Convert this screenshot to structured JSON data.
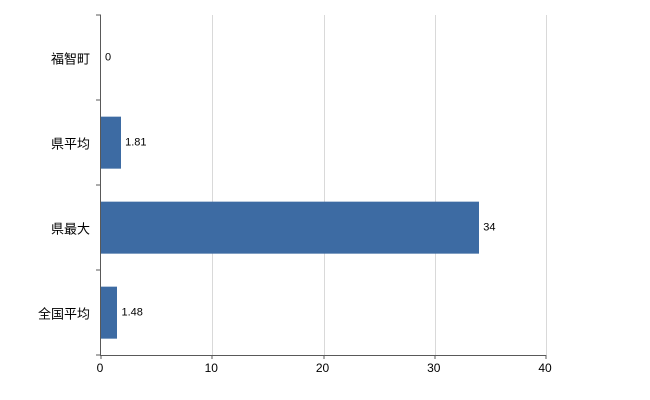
{
  "chart_data": {
    "type": "bar",
    "orientation": "horizontal",
    "title": "",
    "xlabel": "",
    "ylabel": "",
    "categories": [
      "福智町",
      "県平均",
      "県最大",
      "全国平均"
    ],
    "values": [
      0,
      1.81,
      34,
      1.48
    ],
    "value_labels": [
      "0",
      "1.81",
      "34",
      "1.48"
    ],
    "xlim": [
      0,
      40
    ],
    "xticks": [
      0,
      10,
      20,
      30,
      40
    ],
    "xtick_labels": [
      "0",
      "10",
      "20",
      "30",
      "40"
    ],
    "grid": true,
    "legend": "none",
    "colors": {
      "bar": "#3d6ba3",
      "gridline": "#d9d9d9",
      "axis": "#595959",
      "background": "#ffffff",
      "text": "#000000"
    }
  }
}
